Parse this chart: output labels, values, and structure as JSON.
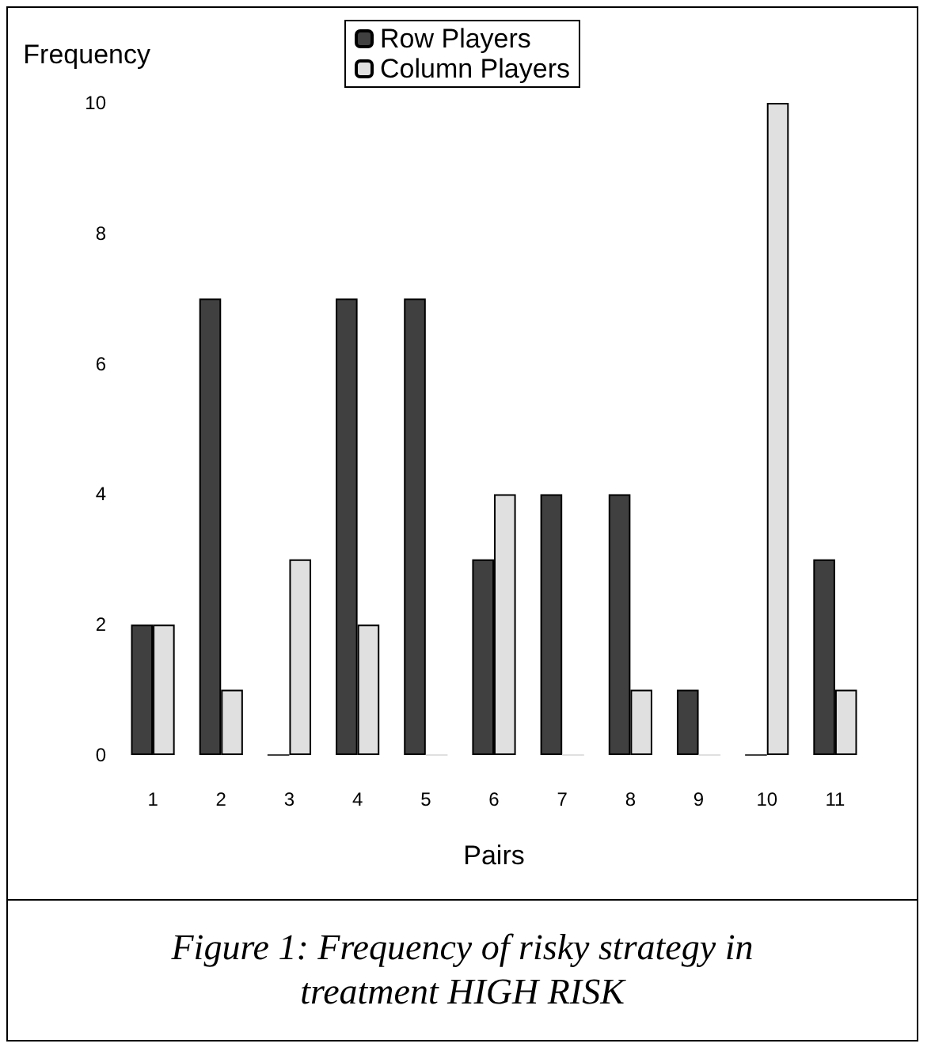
{
  "chart_data": {
    "type": "bar",
    "xlabel": "Pairs",
    "ylabel": "Frequency",
    "categories": [
      "1",
      "2",
      "3",
      "4",
      "5",
      "6",
      "7",
      "8",
      "9",
      "10",
      "11"
    ],
    "series": [
      {
        "name": "Row Players",
        "color": "#404040",
        "values": [
          2,
          7,
          0,
          7,
          7,
          3,
          4,
          4,
          1,
          0,
          3
        ]
      },
      {
        "name": "Column Players",
        "color": "#e0e0e0",
        "values": [
          2,
          1,
          3,
          2,
          0,
          4,
          0,
          1,
          0,
          10,
          1
        ]
      }
    ],
    "ylim": [
      0,
      10
    ],
    "yticks": [
      0,
      2,
      4,
      6,
      8,
      10
    ],
    "grid": false,
    "legend": "top",
    "annotations": [
      "Figure 1: Frequency of risky strategy in treatment HIGH RISK"
    ]
  }
}
